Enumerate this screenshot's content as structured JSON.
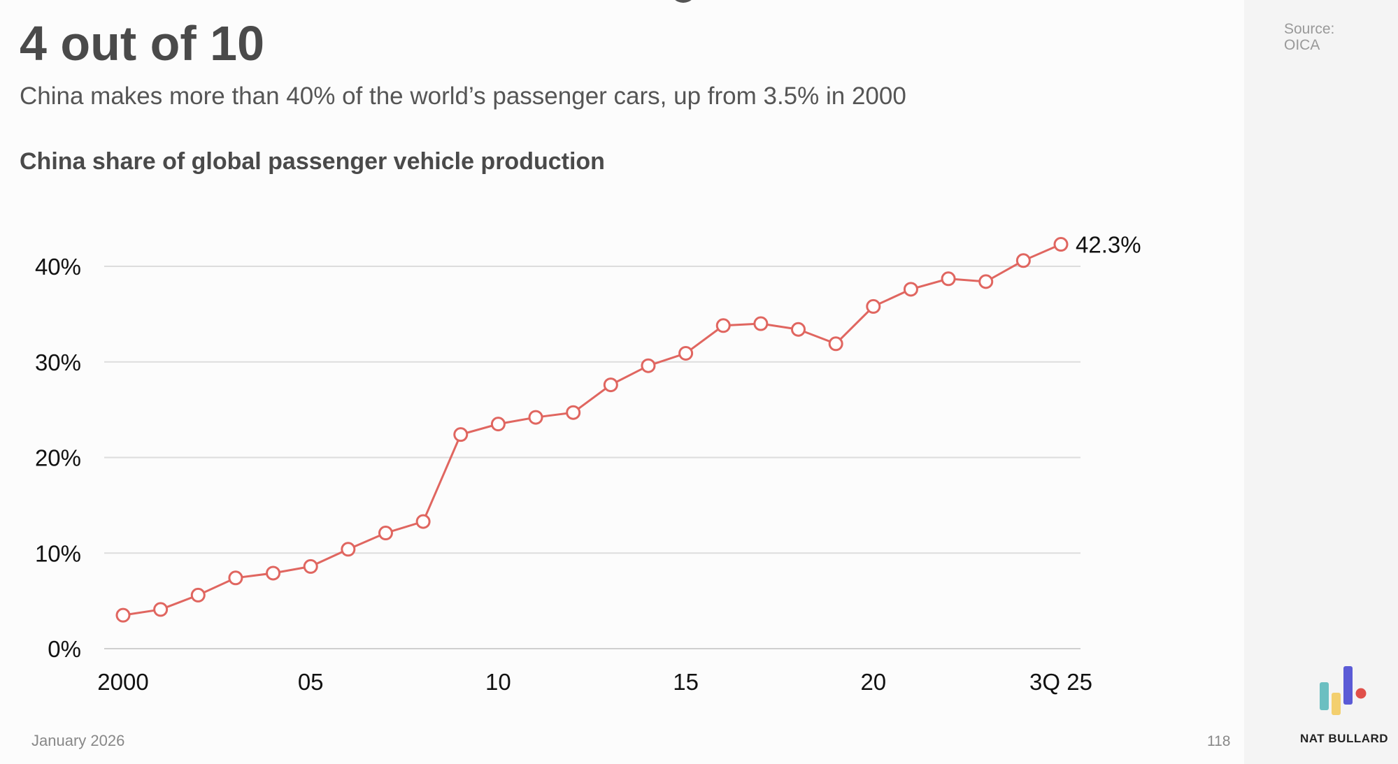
{
  "headline": "4 out of 10",
  "subtitle": "China makes more than 40% of the world’s passenger cars, up from 3.5% in 2000",
  "source": {
    "label": "Source:",
    "value": "OICA"
  },
  "footer": {
    "date": "January 2026",
    "page": "118",
    "brand": "NAT BULLARD"
  },
  "colors": {
    "line": "#e06660",
    "grid": "#dddddd",
    "sidebar": "#f4f4f4",
    "logo": [
      "#6bbfc1",
      "#f3cf6e",
      "#5b5bd6",
      "#e0504a"
    ]
  },
  "chart_data": {
    "type": "line",
    "title": "China share of global passenger vehicle production",
    "x": [
      "2000",
      "2001",
      "2002",
      "2003",
      "2004",
      "2005",
      "2006",
      "2007",
      "2008",
      "2009",
      "2010",
      "2011",
      "2012",
      "2013",
      "2014",
      "2015",
      "2016",
      "2017",
      "2018",
      "2019",
      "2020",
      "2021",
      "2022",
      "2023",
      "2024",
      "3Q 25"
    ],
    "values": [
      3.5,
      4.1,
      5.6,
      7.4,
      7.9,
      8.6,
      10.4,
      12.1,
      13.3,
      22.4,
      23.5,
      24.2,
      24.7,
      27.6,
      29.6,
      30.9,
      33.8,
      34.0,
      33.4,
      31.9,
      35.8,
      37.6,
      38.7,
      38.4,
      40.6,
      42.3
    ],
    "x_tick_labels": [
      {
        "index": 0,
        "label": "2000"
      },
      {
        "index": 5,
        "label": "05"
      },
      {
        "index": 10,
        "label": "10"
      },
      {
        "index": 15,
        "label": "15"
      },
      {
        "index": 20,
        "label": "20"
      },
      {
        "index": 25,
        "label": "3Q 25"
      }
    ],
    "y_ticks": [
      0,
      10,
      20,
      30,
      40
    ],
    "y_tick_labels": [
      "0%",
      "10%",
      "20%",
      "30%",
      "40%"
    ],
    "ylim": [
      0,
      40
    ],
    "grid": true,
    "end_label": "42.3%",
    "marker": "hollow-circle"
  }
}
